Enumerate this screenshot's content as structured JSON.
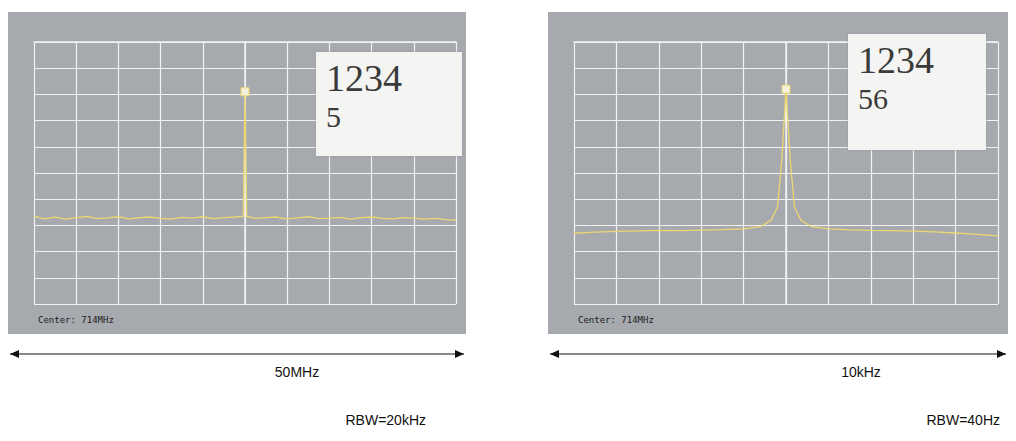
{
  "chart_data": [
    {
      "type": "line",
      "center_label": "Center: 714MHz",
      "note": [
        "1234",
        "5"
      ],
      "span_label": "50MHz",
      "rbw_label": "RBW=20kHz",
      "xlim": [
        -25,
        25
      ],
      "xticks": [
        -25,
        -20,
        -15,
        -10,
        -5,
        0,
        5,
        10,
        15,
        20,
        25
      ],
      "ylim": [
        -100,
        0
      ],
      "yticks": [
        -100,
        -90,
        -80,
        -70,
        -60,
        -50,
        -40,
        -30,
        -20,
        -10,
        0
      ],
      "grid": true,
      "tick_labels": false,
      "marker": "square",
      "color": "#ecd772",
      "x": [
        -25,
        -23.75,
        -22.5,
        -21.25,
        -20,
        -18.75,
        -17.5,
        -16.25,
        -15,
        -13.75,
        -12.5,
        -11.25,
        -10,
        -8.75,
        -7.5,
        -6.25,
        -5,
        -3.75,
        -2.5,
        -1.25,
        -0.2,
        0,
        0.2,
        1.25,
        2.5,
        3.75,
        5,
        6.25,
        7.5,
        8.75,
        10,
        11.25,
        12.5,
        13.75,
        15,
        16.25,
        17.5,
        18.75,
        20,
        21.25,
        22.5,
        23.75,
        25
      ],
      "values": [
        -66.5,
        -67.5,
        -66.8,
        -67.6,
        -67,
        -66.6,
        -67.4,
        -67.1,
        -66.7,
        -67.5,
        -67,
        -66.8,
        -67.3,
        -67.6,
        -66.9,
        -67.2,
        -66.7,
        -67.4,
        -67,
        -66.8,
        -66.5,
        -19,
        -66.6,
        -67.3,
        -67,
        -66.8,
        -67.5,
        -67.1,
        -66.7,
        -67.4,
        -67.2,
        -66.9,
        -67.6,
        -67,
        -66.8,
        -67.3,
        -67.5,
        -67,
        -67.2,
        -67.6,
        -67.3,
        -67.8,
        -68
      ]
    },
    {
      "type": "line",
      "center_label": "Center: 714MHz",
      "note": [
        "1234",
        "56"
      ],
      "span_label": "10kHz",
      "rbw_label": "RBW=40Hz",
      "xlim": [
        -5,
        5
      ],
      "xticks": [
        -5,
        -4,
        -3,
        -2,
        -1,
        0,
        1,
        2,
        3,
        4,
        5
      ],
      "ylim": [
        -100,
        0
      ],
      "yticks": [
        -100,
        -90,
        -80,
        -70,
        -60,
        -50,
        -40,
        -30,
        -20,
        -10,
        0
      ],
      "grid": true,
      "tick_labels": false,
      "marker": "square",
      "color": "#ecd772",
      "x": [
        -5,
        -4.5,
        -4,
        -3.5,
        -3,
        -2.5,
        -2,
        -1.5,
        -1,
        -0.6,
        -0.35,
        -0.2,
        -0.1,
        0,
        0.1,
        0.2,
        0.35,
        0.6,
        1,
        1.5,
        2,
        2.5,
        3,
        3.5,
        4,
        4.5,
        5
      ],
      "values": [
        -73,
        -72.6,
        -72.3,
        -72.1,
        -71.9,
        -72,
        -71.8,
        -71.6,
        -71.3,
        -70.5,
        -68,
        -63,
        -45,
        -18,
        -45,
        -63,
        -68,
        -70.5,
        -71.3,
        -71.7,
        -71.9,
        -72,
        -72.2,
        -72.5,
        -72.9,
        -73.4,
        -74
      ]
    }
  ]
}
